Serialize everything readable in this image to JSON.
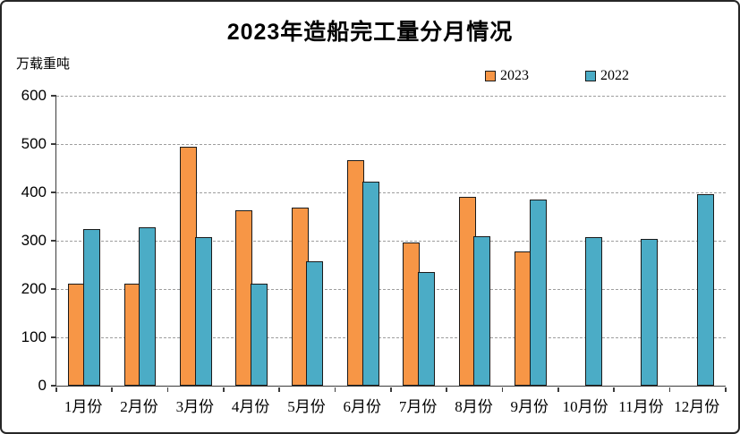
{
  "title": "2023年造船完工量分月情况",
  "chart_data": {
    "type": "bar",
    "title": "2023年造船完工量分月情况",
    "ylabel": "万载重吨",
    "xlabel": "",
    "ylim": [
      0,
      600
    ],
    "yticks": [
      600,
      500,
      400,
      300,
      200,
      100,
      0
    ],
    "grid": "horizontal-dashed",
    "legend_position": "top-right",
    "categories": [
      "1月份",
      "2月份",
      "3月份",
      "4月份",
      "5月份",
      "6月份",
      "7月份",
      "8月份",
      "9月份",
      "10月份",
      "11月份",
      "12月份"
    ],
    "series": [
      {
        "name": "2023",
        "color": "#F79646",
        "values": [
          212,
          212,
          495,
          363,
          368,
          466,
          297,
          390,
          277,
          null,
          null,
          null
        ]
      },
      {
        "name": "2022",
        "color": "#4BACC6",
        "values": [
          325,
          327,
          308,
          211,
          257,
          422,
          236,
          310,
          386,
          308,
          303,
          397
        ]
      }
    ]
  },
  "colors": {
    "bar_border": "#1a1a1a",
    "axis": "#3b3b3b",
    "gridline": "#9e9e9e",
    "background": "#ffffff",
    "frame_border": "#262626",
    "text": "#000000"
  }
}
